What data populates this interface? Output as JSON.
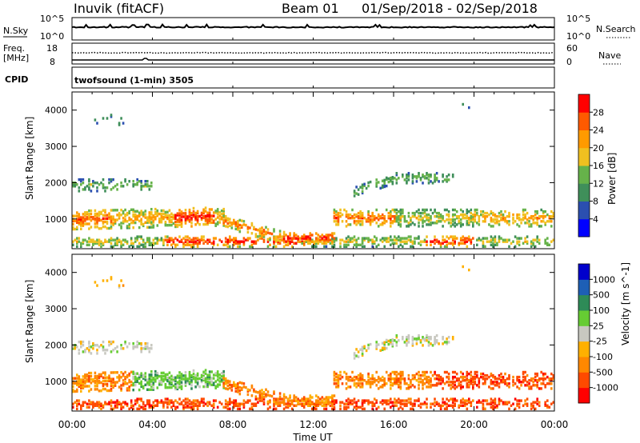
{
  "header": {
    "station": "Inuvik (fitACF)",
    "beam_label": "Beam 01",
    "date_range": "01/Sep/2018 - 02/Sep/2018"
  },
  "top_panels": {
    "nsky_label": "N.Sky",
    "nsky_ticks": [
      "10^5",
      "10^0"
    ],
    "nsearch_label": "N.Search",
    "nsearch_ticks": [
      "10^5",
      "10^0"
    ],
    "freq_label_1": "Freq.",
    "freq_label_2": "[MHz]",
    "freq_ticks": [
      "18",
      "8"
    ],
    "nave_label": "Nave",
    "nave_ticks": [
      "60",
      "0"
    ],
    "cpid_label": "CPID",
    "cpid_value": "twofsound (1-min) 3505"
  },
  "colors": {
    "power_scale": [
      "#0000ff",
      "#2b4fb0",
      "#3f8f5a",
      "#66b24a",
      "#f0c020",
      "#ff9a00",
      "#ff5a00",
      "#ff0000"
    ],
    "velocity_scale": [
      "#ff0000",
      "#ff4a00",
      "#ff8800",
      "#ffb000",
      "#c8c8c0",
      "#66cc33",
      "#2e8b57",
      "#1e5fb5",
      "#0000cc"
    ]
  },
  "chart_data": [
    {
      "type": "heatmap",
      "title": "",
      "quantity": "Power",
      "ylabel": "Slant Range [km]",
      "xlabel": "",
      "x_ticks": [
        "00:00",
        "04:00",
        "08:00",
        "12:00",
        "16:00",
        "20:00",
        "00:00"
      ],
      "y_ticks": [
        "1000",
        "2000",
        "3000",
        "4000"
      ],
      "y_tick_values": [
        1000,
        2000,
        3000,
        4000
      ],
      "ylim": [
        180,
        4500
      ],
      "xlim_hours": [
        0,
        24
      ],
      "colorbar_label": "Power [dB]",
      "colorbar_ticks": [
        "4",
        "8",
        "12",
        "16",
        "20",
        "24",
        "28"
      ]
    },
    {
      "type": "heatmap",
      "title": "",
      "quantity": "Velocity",
      "ylabel": "Slant Range [km]",
      "xlabel": "Time UT",
      "x_ticks": [
        "00:00",
        "04:00",
        "08:00",
        "12:00",
        "16:00",
        "20:00",
        "00:00"
      ],
      "y_ticks": [
        "1000",
        "2000",
        "3000",
        "4000"
      ],
      "y_tick_values": [
        1000,
        2000,
        3000,
        4000
      ],
      "ylim": [
        180,
        4500
      ],
      "xlim_hours": [
        0,
        24
      ],
      "colorbar_label": "Velocity [m s^-1]",
      "colorbar_ticks": [
        "-1000",
        "-500",
        "-100",
        "-25",
        "25",
        "100",
        "500",
        "1000"
      ]
    }
  ]
}
